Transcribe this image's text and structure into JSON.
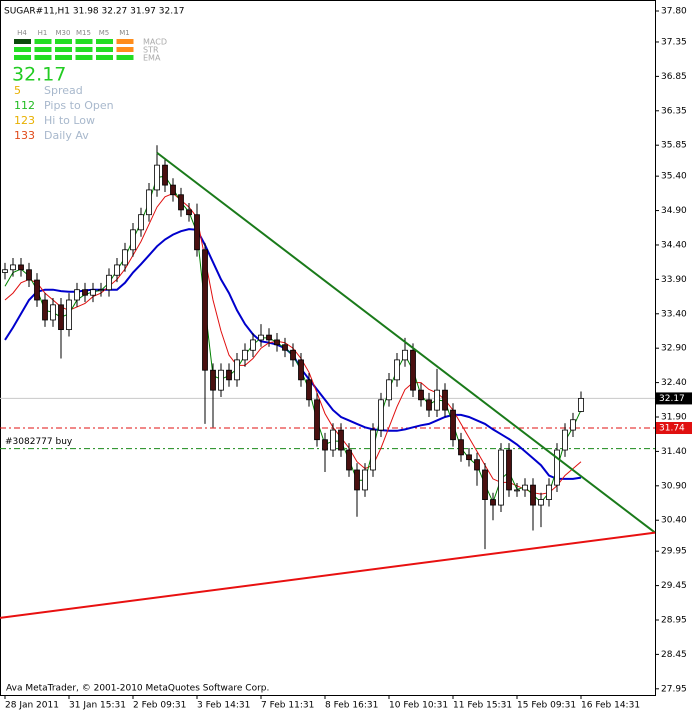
{
  "chart_data": {
    "type": "candlestick",
    "title": "SUGAR#11,H1  31.98 32.27 31.97 32.17",
    "categories": [
      "28 Jan 2011",
      null,
      null,
      null,
      null,
      null,
      null,
      null,
      "31 Jan 15:31",
      null,
      null,
      null,
      null,
      null,
      null,
      null,
      "2 Feb 09:31",
      null,
      null,
      null,
      null,
      null,
      null,
      null,
      "3 Feb 14:31",
      null,
      null,
      null,
      null,
      null,
      null,
      null,
      "7 Feb 11:31",
      null,
      null,
      null,
      null,
      null,
      null,
      null,
      "8 Feb 16:31",
      null,
      null,
      null,
      null,
      null,
      null,
      null,
      "10 Feb 10:31",
      null,
      null,
      null,
      null,
      null,
      null,
      null,
      "11 Feb 15:31",
      null,
      null,
      null,
      null,
      null,
      null,
      null,
      "15 Feb 09:31",
      null,
      null,
      null,
      null,
      null,
      null,
      null,
      "16 Feb 14:31"
    ],
    "open": [
      34.0,
      34.04,
      34.11,
      34.04,
      33.89,
      33.6,
      33.31,
      33.53,
      33.17,
      33.6,
      33.75,
      33.67,
      33.75,
      33.75,
      33.96,
      34.11,
      34.33,
      34.62,
      34.84,
      35.2,
      35.56,
      35.27,
      35.13,
      34.91,
      34.84,
      34.33,
      32.58,
      32.29,
      32.58,
      32.44,
      32.73,
      32.87,
      33.02,
      33.09,
      33.02,
      32.95,
      32.87,
      32.73,
      32.44,
      32.15,
      31.57,
      31.42,
      31.71,
      31.42,
      31.13,
      30.84,
      31.13,
      31.71,
      32.15,
      32.44,
      32.73,
      32.87,
      32.29,
      32.15,
      32.0,
      32.29,
      32.0,
      31.57,
      31.35,
      31.28,
      31.13,
      30.7,
      30.62,
      31.42,
      30.84,
      30.84,
      30.91,
      30.62,
      30.7,
      30.91,
      31.42,
      31.71,
      31.98
    ],
    "high": [
      34.14,
      34.21,
      34.21,
      34.14,
      33.99,
      33.7,
      33.63,
      33.63,
      33.7,
      33.85,
      33.85,
      33.85,
      33.85,
      34.06,
      34.21,
      34.43,
      34.72,
      34.94,
      35.3,
      35.85,
      35.66,
      35.37,
      35.23,
      35.01,
      35.0,
      34.43,
      32.68,
      32.68,
      32.68,
      32.83,
      32.97,
      33.12,
      33.25,
      33.19,
      33.12,
      33.05,
      32.97,
      32.83,
      32.54,
      32.25,
      31.67,
      31.81,
      31.81,
      31.52,
      31.23,
      31.23,
      31.81,
      32.25,
      32.54,
      32.83,
      33.05,
      32.97,
      32.39,
      32.25,
      32.6,
      32.39,
      32.1,
      31.67,
      31.45,
      31.38,
      31.23,
      30.8,
      31.52,
      31.52,
      30.94,
      31.01,
      31.01,
      30.8,
      31.01,
      31.52,
      31.81,
      31.96,
      32.27
    ],
    "low": [
      33.9,
      33.94,
      33.94,
      33.79,
      33.5,
      33.21,
      33.21,
      32.75,
      33.07,
      33.5,
      33.57,
      33.57,
      33.65,
      33.65,
      33.86,
      34.01,
      34.23,
      34.52,
      34.74,
      35.1,
      35.17,
      35.03,
      34.81,
      34.74,
      34.23,
      31.8,
      31.75,
      32.19,
      32.34,
      32.34,
      32.63,
      32.77,
      32.92,
      32.92,
      32.85,
      32.77,
      32.63,
      32.34,
      32.05,
      31.47,
      31.1,
      31.32,
      31.32,
      31.03,
      30.45,
      30.74,
      31.03,
      31.61,
      32.05,
      32.34,
      32.63,
      32.19,
      32.05,
      31.9,
      31.9,
      31.9,
      31.47,
      31.25,
      31.18,
      30.9,
      29.98,
      30.4,
      30.52,
      30.74,
      30.74,
      30.74,
      30.25,
      30.3,
      30.6,
      30.81,
      31.32,
      31.61,
      31.97
    ],
    "close": [
      34.04,
      34.11,
      34.04,
      33.89,
      33.6,
      33.31,
      33.53,
      33.17,
      33.6,
      33.75,
      33.67,
      33.75,
      33.75,
      33.96,
      34.11,
      34.33,
      34.62,
      34.84,
      35.2,
      35.56,
      35.27,
      35.13,
      34.91,
      34.84,
      34.33,
      32.58,
      32.29,
      32.58,
      32.44,
      32.73,
      32.87,
      33.02,
      33.09,
      33.02,
      32.95,
      32.87,
      32.73,
      32.44,
      32.15,
      31.57,
      31.42,
      31.71,
      31.42,
      31.13,
      30.84,
      31.13,
      31.71,
      32.15,
      32.44,
      32.73,
      32.87,
      32.29,
      32.15,
      32.0,
      32.29,
      32.0,
      31.57,
      31.35,
      31.28,
      31.13,
      30.7,
      30.62,
      31.42,
      30.84,
      30.84,
      30.91,
      30.62,
      30.7,
      30.91,
      31.42,
      31.71,
      31.86,
      32.17
    ],
    "up_color": "#ffffff",
    "down_color": "#4a1010",
    "overlays": [
      {
        "color": "#0000cc",
        "values": [
          33.02,
          33.2,
          33.4,
          33.6,
          33.72,
          33.75,
          33.75,
          33.73,
          33.72,
          33.72,
          33.74,
          33.75,
          33.75,
          33.75,
          33.75,
          33.85,
          34.0,
          34.12,
          34.25,
          34.38,
          34.48,
          34.55,
          34.6,
          34.63,
          34.62,
          34.4,
          34.15,
          33.9,
          33.7,
          33.45,
          33.25,
          33.1,
          33.0,
          32.98,
          32.95,
          32.9,
          32.8,
          32.6,
          32.45,
          32.3,
          32.15,
          32.0,
          31.9,
          31.85,
          31.8,
          31.75,
          31.72,
          31.71,
          31.7,
          31.7,
          31.72,
          31.75,
          31.78,
          31.8,
          31.85,
          31.9,
          31.93,
          31.93,
          31.9,
          31.85,
          31.8,
          31.72,
          31.65,
          31.58,
          31.5,
          31.4,
          31.3,
          31.2,
          31.05,
          31.0,
          31.0,
          31.0,
          31.02
        ]
      },
      {
        "color": "#e01010",
        "values": [
          33.6,
          33.7,
          33.85,
          33.9,
          33.85,
          33.7,
          33.6,
          33.5,
          33.45,
          33.5,
          33.55,
          33.65,
          33.7,
          33.8,
          33.9,
          34.05,
          34.25,
          34.45,
          34.7,
          34.95,
          35.1,
          35.15,
          35.05,
          34.95,
          34.8,
          34.2,
          33.6,
          33.15,
          32.8,
          32.65,
          32.65,
          32.75,
          32.9,
          32.98,
          33.0,
          32.98,
          32.9,
          32.75,
          32.55,
          32.25,
          31.95,
          31.75,
          31.6,
          31.45,
          31.25,
          31.15,
          31.2,
          31.45,
          31.75,
          32.05,
          32.3,
          32.4,
          32.4,
          32.3,
          32.25,
          32.15,
          32.0,
          31.8,
          31.6,
          31.4,
          31.2,
          31.0,
          30.95,
          30.95,
          30.9,
          30.85,
          30.8,
          30.78,
          30.8,
          30.9,
          31.05,
          31.15,
          31.25
        ]
      },
      {
        "color": "#008000",
        "values": [
          33.8,
          34.0,
          34.05,
          33.95,
          33.75,
          33.45,
          33.42,
          33.35,
          33.4,
          33.6,
          33.68,
          33.72,
          33.74,
          33.85,
          34.03,
          34.22,
          34.48,
          34.73,
          35.02,
          35.38,
          35.4,
          35.22,
          35.02,
          34.88,
          34.58,
          33.5,
          32.5,
          32.45,
          32.5,
          32.6,
          32.8,
          32.95,
          33.05,
          33.05,
          32.98,
          32.9,
          32.8,
          32.58,
          32.3,
          31.85,
          31.5,
          31.55,
          31.55,
          31.28,
          30.98,
          30.98,
          31.42,
          31.93,
          32.3,
          32.58,
          32.8,
          32.58,
          32.22,
          32.08,
          32.15,
          32.13,
          31.8,
          31.45,
          31.3,
          31.2,
          30.92,
          30.66,
          31.0,
          31.1,
          30.85,
          30.88,
          30.77,
          30.66,
          30.8,
          31.15,
          31.55,
          31.75,
          32.0
        ]
      }
    ],
    "trendlines": [
      {
        "color": "#1a7a1a",
        "start_price": 35.74,
        "end_price": 30.22
      },
      {
        "color": "#e81010",
        "start_price": 28.98,
        "end_price": 30.22
      }
    ],
    "levels": [
      {
        "value": 31.74,
        "color": "#e01010",
        "axis_label": true
      },
      {
        "value": 31.44,
        "color": "#1a8a1a",
        "label": "#3082777 buy"
      }
    ],
    "last_price": 32.17,
    "ylim": [
      27.86,
      37.96
    ],
    "yticks": [
      {
        "value": 37.8,
        "label": "37.80"
      },
      37.35,
      36.85,
      36.35,
      35.85,
      {
        "value": 35.4,
        "label": "35.40"
      },
      {
        "value": 34.9,
        "label": "34.90"
      },
      {
        "value": 34.4,
        "label": "34.40"
      },
      {
        "value": 33.9,
        "label": "33.90"
      },
      {
        "value": 33.4,
        "label": "33.40"
      },
      {
        "value": 32.9,
        "label": "32.90"
      },
      {
        "value": 32.4,
        "label": "32.40"
      },
      {
        "value": 31.9,
        "label": "31.90"
      },
      {
        "value": 31.4,
        "label": "31.40"
      },
      {
        "value": 30.9,
        "label": "30.90"
      },
      {
        "value": 30.4,
        "label": "30.40"
      },
      29.95,
      29.45,
      28.95,
      28.45,
      27.95
    ],
    "footer": "Ava MetaTrader, © 2001-2010 MetaQuotes Software Corp."
  },
  "indicator_panel": {
    "timeframes": [
      "H4",
      "H1",
      "M30",
      "M15",
      "M5",
      "M1"
    ],
    "rows": [
      {
        "name": "MACD",
        "colors": [
          "#0b4a0b",
          "#22dd22",
          "#22dd22",
          "#22dd22",
          "#22dd22",
          "#ff8c1a"
        ]
      },
      {
        "name": "STR",
        "colors": [
          "#22dd22",
          "#22dd22",
          "#22dd22",
          "#22dd22",
          "#22dd22",
          "#ff8c1a"
        ]
      },
      {
        "name": "EMA",
        "colors": [
          "#22dd22",
          "#22dd22",
          "#22dd22",
          "#22dd22",
          "#22dd22",
          "#22dd22"
        ]
      }
    ],
    "price": "32.17",
    "stats": [
      {
        "value": 5,
        "label": "Spread",
        "color": "#e8b000"
      },
      {
        "value": 112,
        "label": "Pips to Open",
        "color": "#22bb22"
      },
      {
        "value": 123,
        "label": "Hi to Low",
        "color": "#e8b000"
      },
      {
        "value": 133,
        "label": "Daily Av",
        "color": "#e04a1a"
      }
    ]
  }
}
